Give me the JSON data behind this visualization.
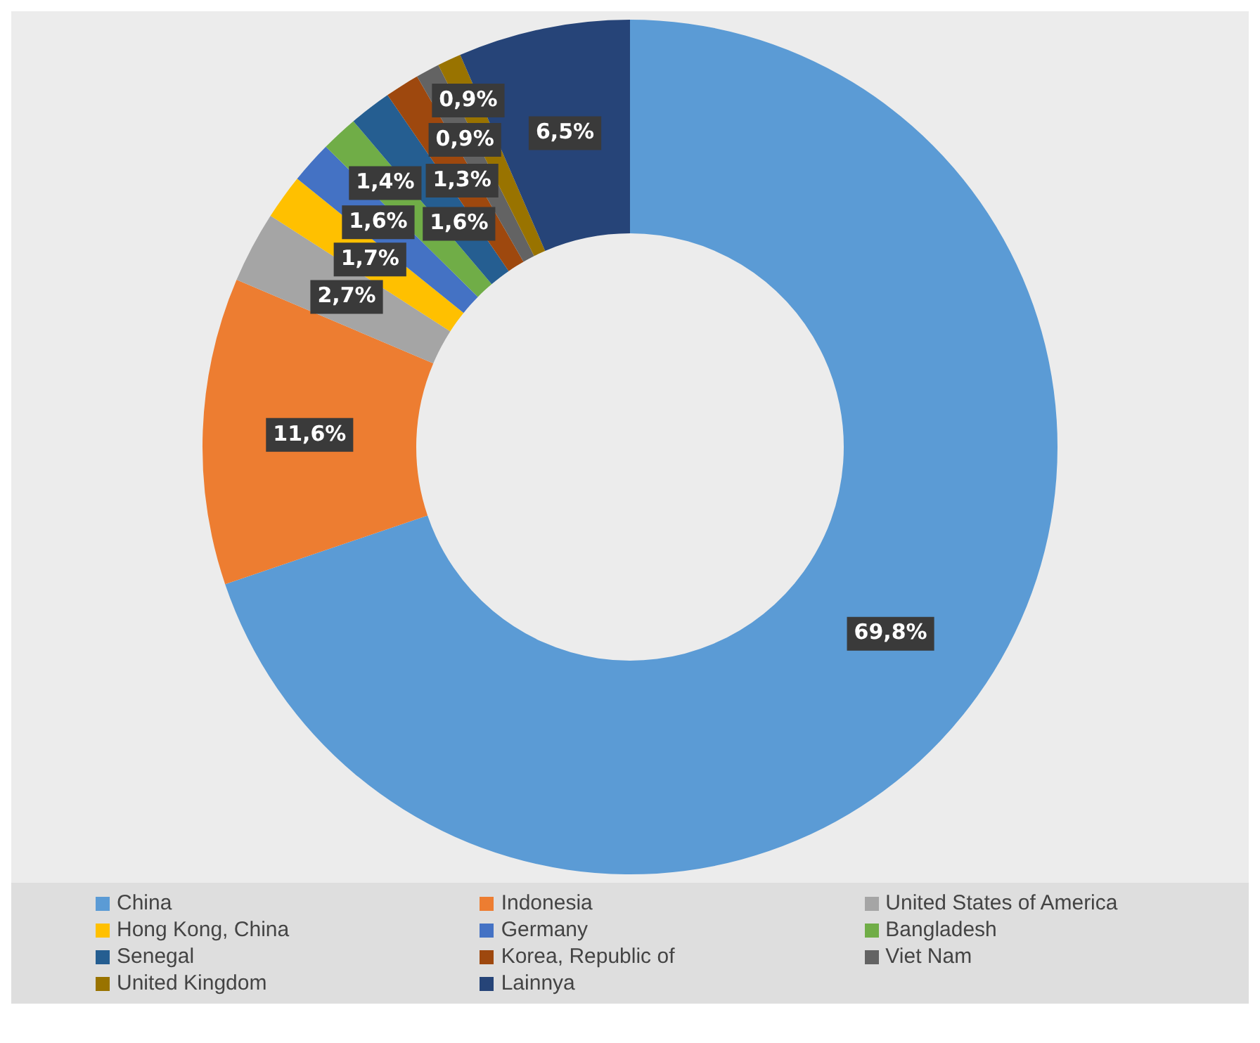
{
  "chart_data": {
    "type": "donut",
    "categories": [
      "China",
      "Indonesia",
      "United States of America",
      "Hong Kong, China",
      "Germany",
      "Bangladesh",
      "Senegal",
      "Korea, Republic of",
      "Viet Nam",
      "United Kingdom",
      "Lainnya"
    ],
    "values": [
      69.8,
      11.6,
      2.7,
      1.7,
      1.6,
      1.4,
      1.6,
      1.3,
      0.9,
      0.9,
      6.5
    ],
    "value_labels": [
      "69,8%",
      "11,6%",
      "2,7%",
      "1,7%",
      "1,6%",
      "1,4%",
      "1,6%",
      "1,3%",
      "0,9%",
      "0,9%",
      "6,5%"
    ],
    "colors": [
      "#5b9bd5",
      "#ed7d31",
      "#a5a5a5",
      "#ffc000",
      "#4472c4",
      "#70ad47",
      "#255e91",
      "#9e480e",
      "#636363",
      "#997300",
      "#264478"
    ],
    "legend": "bottom"
  }
}
